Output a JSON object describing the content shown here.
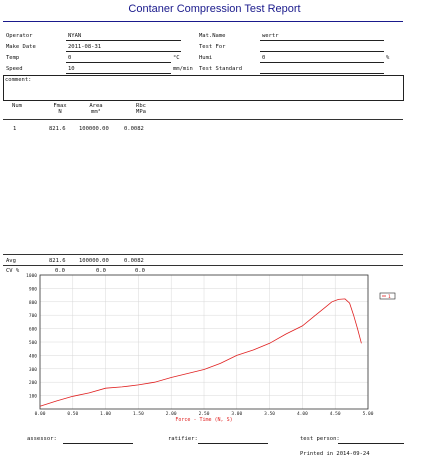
{
  "report": {
    "title": "Contaner Compression Test Report"
  },
  "fields": {
    "operator": {
      "label": "Operator",
      "value": "NYAN"
    },
    "make_date": {
      "label": "Make Date",
      "value": "2011-08-31"
    },
    "temp": {
      "label": "Temp",
      "value": "0",
      "unit": "°C"
    },
    "speed": {
      "label": "Speed",
      "value": "10",
      "unit": "mm/min"
    },
    "mat_name": {
      "label": "Mat.Name",
      "value": "wertr"
    },
    "test_for": {
      "label": "Test For",
      "value": ""
    },
    "humi": {
      "label": "Humi",
      "value": "0",
      "unit": "%"
    },
    "test_standard": {
      "label": "Test Standard",
      "value": ""
    }
  },
  "comment": {
    "label": "comment:"
  },
  "table": {
    "headers": [
      {
        "name": "Num",
        "unit": ""
      },
      {
        "name": "Fmax",
        "unit": "N"
      },
      {
        "name": "Area",
        "unit": "mm²"
      },
      {
        "name": "Rbc",
        "unit": "MPa"
      }
    ],
    "rows": [
      [
        "1",
        "821.6",
        "100000.00",
        "0.0082"
      ]
    ],
    "avg": {
      "label": "Avg",
      "values": [
        "821.6",
        "100000.00",
        "0.0082"
      ]
    },
    "cv": {
      "label": "CV %",
      "values": [
        "0.0",
        "0.0",
        "0.0"
      ]
    }
  },
  "chart_data": {
    "type": "line",
    "title": "",
    "xlabel": "Force - Time  (N, S)",
    "ylabel": "",
    "xlim": [
      0,
      5
    ],
    "ylim": [
      0,
      1000
    ],
    "x_ticks": [
      "0.00",
      "0.50",
      "1.00",
      "1.50",
      "2.00",
      "2.50",
      "3.00",
      "3.50",
      "4.00",
      "4.50",
      "5.00"
    ],
    "y_ticks": [
      "100",
      "200",
      "300",
      "400",
      "500",
      "600",
      "700",
      "800",
      "900",
      "1000"
    ],
    "grid": true,
    "legend": "top-right",
    "series": [
      {
        "name": "1",
        "color": "#e02020",
        "x": [
          0.0,
          0.25,
          0.5,
          0.75,
          1.0,
          1.25,
          1.5,
          1.75,
          2.0,
          2.25,
          2.5,
          2.75,
          3.0,
          3.25,
          3.5,
          3.75,
          4.0,
          4.2,
          4.35,
          4.45,
          4.55,
          4.65,
          4.72,
          4.78,
          4.84,
          4.9
        ],
        "y": [
          20,
          60,
          95,
          120,
          155,
          165,
          180,
          200,
          235,
          265,
          295,
          340,
          400,
          440,
          490,
          560,
          620,
          700,
          760,
          800,
          818,
          821.6,
          790,
          700,
          600,
          490
        ]
      }
    ]
  },
  "footer": {
    "assessor": "assessor:",
    "ratifier": "ratifier:",
    "test_person": "test person:",
    "printed": "Printed in 2014-09-24"
  }
}
